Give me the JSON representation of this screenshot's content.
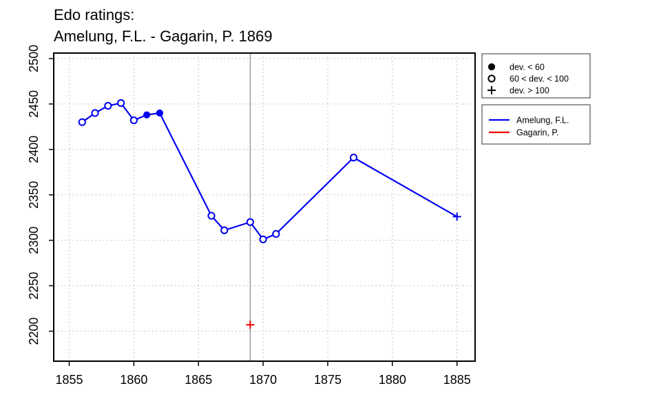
{
  "chart_data": {
    "type": "line",
    "title": [
      "Edo ratings:",
      "Amelung, F.L. - Gagarin, P. 1869"
    ],
    "xlabel": "",
    "ylabel": "",
    "xlim": [
      1853.8,
      1886.4
    ],
    "ylim": [
      2167,
      2506
    ],
    "xticks": [
      1855,
      1860,
      1865,
      1870,
      1875,
      1880,
      1885
    ],
    "yticks": [
      2200,
      2250,
      2300,
      2350,
      2400,
      2450,
      2500
    ],
    "grid": true,
    "vertical_line_x": 1869,
    "marker_legend": [
      {
        "symbol": "filled-circle",
        "label": "dev. < 60"
      },
      {
        "symbol": "open-circle",
        "label": "60 < dev. < 100"
      },
      {
        "symbol": "plus",
        "label": "dev. > 100"
      }
    ],
    "legend_placement": "right-top, outside plot",
    "series": [
      {
        "name": "Amelung, F.L.",
        "color": "#0000ee",
        "points": [
          {
            "x": 1856,
            "y": 2430,
            "marker": "open-circle"
          },
          {
            "x": 1857,
            "y": 2440,
            "marker": "open-circle"
          },
          {
            "x": 1858,
            "y": 2448,
            "marker": "open-circle"
          },
          {
            "x": 1859,
            "y": 2451,
            "marker": "open-circle"
          },
          {
            "x": 1860,
            "y": 2432,
            "marker": "open-circle"
          },
          {
            "x": 1861,
            "y": 2438,
            "marker": "filled-circle"
          },
          {
            "x": 1862,
            "y": 2440,
            "marker": "filled-circle"
          },
          {
            "x": 1866,
            "y": 2327,
            "marker": "open-circle"
          },
          {
            "x": 1867,
            "y": 2311,
            "marker": "open-circle"
          },
          {
            "x": 1869,
            "y": 2320,
            "marker": "open-circle"
          },
          {
            "x": 1870,
            "y": 2301,
            "marker": "open-circle"
          },
          {
            "x": 1871,
            "y": 2307,
            "marker": "open-circle"
          },
          {
            "x": 1877,
            "y": 2391,
            "marker": "open-circle"
          },
          {
            "x": 1885,
            "y": 2326,
            "marker": "plus"
          }
        ]
      },
      {
        "name": "Gagarin, P.",
        "color": "#ee0000",
        "points": [
          {
            "x": 1869,
            "y": 2207,
            "marker": "plus"
          }
        ]
      }
    ]
  }
}
